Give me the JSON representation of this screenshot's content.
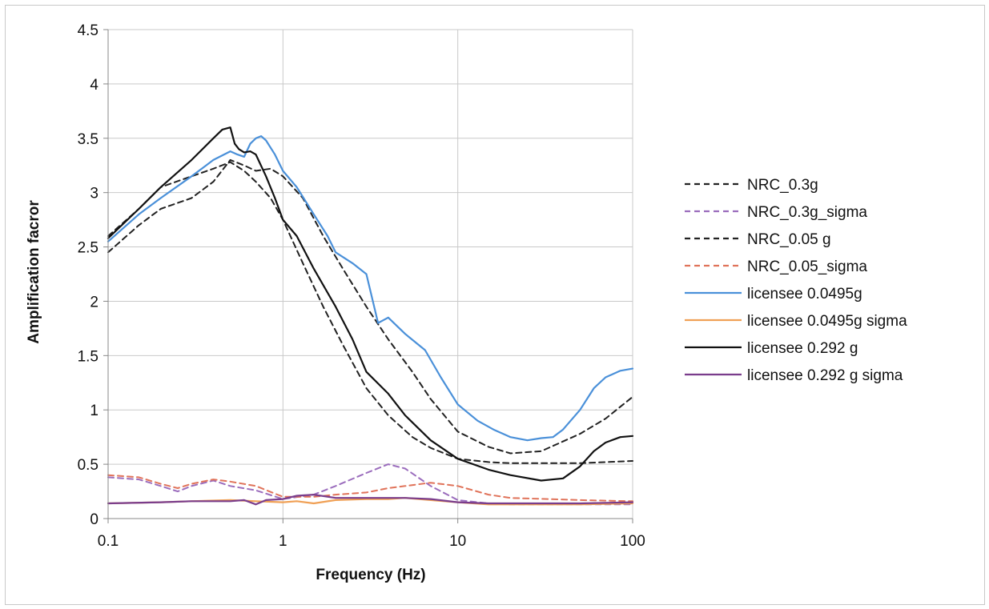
{
  "chart_data": {
    "type": "line",
    "xlabel": "Frequency (Hz)",
    "ylabel": "Amplification facror",
    "xscale": "log",
    "xlim": [
      0.1,
      100
    ],
    "ylim": [
      0,
      4.5
    ],
    "xticks": [
      "0.1",
      "1",
      "10",
      "100"
    ],
    "yticks": [
      "0",
      "0.5",
      "1",
      "1.5",
      "2",
      "2.5",
      "3",
      "3.5",
      "4",
      "4.5"
    ],
    "grid": true,
    "legend_position": "right",
    "series": [
      {
        "name": "NRC_0.3g",
        "color": "#222222",
        "dash": "dashed",
        "x": [
          0.1,
          0.15,
          0.2,
          0.3,
          0.4,
          0.5,
          0.6,
          0.7,
          0.85,
          1.0,
          1.3,
          1.7,
          2.2,
          3.0,
          4.0,
          5.5,
          7.0,
          10,
          15,
          20,
          30,
          50,
          70,
          100
        ],
        "y": [
          2.6,
          2.85,
          3.05,
          3.15,
          3.22,
          3.28,
          3.2,
          3.1,
          2.95,
          2.75,
          2.35,
          1.95,
          1.6,
          1.2,
          0.95,
          0.75,
          0.65,
          0.55,
          0.52,
          0.51,
          0.51,
          0.51,
          0.52,
          0.53
        ]
      },
      {
        "name": "NRC_0.3g_sigma",
        "color": "#9b6dbd",
        "dash": "dashed",
        "x": [
          0.1,
          0.15,
          0.2,
          0.25,
          0.3,
          0.4,
          0.5,
          0.7,
          1.0,
          1.5,
          2.0,
          3.0,
          4.0,
          5.0,
          7.0,
          10,
          15,
          20,
          50,
          100
        ],
        "y": [
          0.38,
          0.36,
          0.3,
          0.25,
          0.3,
          0.35,
          0.3,
          0.26,
          0.18,
          0.22,
          0.3,
          0.42,
          0.5,
          0.46,
          0.3,
          0.17,
          0.14,
          0.13,
          0.13,
          0.13
        ]
      },
      {
        "name": "NRC_0.05 g",
        "color": "#222222",
        "dash": "dashed",
        "x": [
          0.1,
          0.15,
          0.2,
          0.3,
          0.4,
          0.5,
          0.6,
          0.7,
          0.85,
          1.0,
          1.3,
          1.7,
          2.2,
          3.0,
          4.0,
          5.5,
          7.0,
          10,
          15,
          20,
          30,
          50,
          70,
          100
        ],
        "y": [
          2.45,
          2.7,
          2.85,
          2.95,
          3.1,
          3.3,
          3.25,
          3.2,
          3.22,
          3.15,
          2.95,
          2.6,
          2.3,
          1.95,
          1.65,
          1.35,
          1.1,
          0.8,
          0.66,
          0.6,
          0.62,
          0.78,
          0.92,
          1.12
        ]
      },
      {
        "name": "NRC_0.05_sigma",
        "color": "#e0735a",
        "dash": "dashed",
        "x": [
          0.1,
          0.15,
          0.2,
          0.25,
          0.3,
          0.4,
          0.5,
          0.7,
          1.0,
          1.5,
          2.0,
          3.0,
          4.0,
          5.0,
          7.0,
          10,
          15,
          20,
          50,
          100
        ],
        "y": [
          0.4,
          0.38,
          0.32,
          0.28,
          0.32,
          0.36,
          0.34,
          0.3,
          0.2,
          0.2,
          0.22,
          0.24,
          0.28,
          0.3,
          0.33,
          0.3,
          0.22,
          0.19,
          0.17,
          0.16
        ]
      },
      {
        "name": "licensee 0.0495g",
        "color": "#4a90d9",
        "dash": "solid",
        "x": [
          0.1,
          0.15,
          0.2,
          0.3,
          0.4,
          0.5,
          0.55,
          0.6,
          0.65,
          0.7,
          0.75,
          0.8,
          0.9,
          1.0,
          1.2,
          1.5,
          1.8,
          2.0,
          2.5,
          3.0,
          3.5,
          4.0,
          5.0,
          6.5,
          8.0,
          10,
          13,
          16,
          20,
          25,
          30,
          35,
          40,
          50,
          60,
          70,
          85,
          100
        ],
        "y": [
          2.55,
          2.8,
          2.95,
          3.15,
          3.3,
          3.38,
          3.35,
          3.33,
          3.45,
          3.5,
          3.52,
          3.48,
          3.35,
          3.2,
          3.05,
          2.8,
          2.6,
          2.45,
          2.35,
          2.25,
          1.8,
          1.85,
          1.7,
          1.55,
          1.3,
          1.05,
          0.9,
          0.82,
          0.75,
          0.72,
          0.74,
          0.75,
          0.82,
          1.0,
          1.2,
          1.3,
          1.36,
          1.38
        ]
      },
      {
        "name": "licensee 0.0495g sigma",
        "color": "#f0a055",
        "dash": "solid",
        "x": [
          0.1,
          0.2,
          0.3,
          0.5,
          0.7,
          1.0,
          1.2,
          1.5,
          2.0,
          3.0,
          4.0,
          5.0,
          7.0,
          10,
          15,
          20,
          50,
          100
        ],
        "y": [
          0.14,
          0.15,
          0.16,
          0.17,
          0.16,
          0.15,
          0.16,
          0.14,
          0.17,
          0.18,
          0.18,
          0.19,
          0.17,
          0.15,
          0.13,
          0.13,
          0.13,
          0.14
        ]
      },
      {
        "name": "licensee 0.292 g",
        "color": "#111111",
        "dash": "solid",
        "x": [
          0.1,
          0.15,
          0.2,
          0.3,
          0.4,
          0.45,
          0.5,
          0.53,
          0.56,
          0.6,
          0.65,
          0.7,
          0.8,
          0.9,
          1.0,
          1.2,
          1.5,
          2.0,
          2.5,
          3.0,
          4.0,
          5.0,
          7.0,
          10,
          15,
          20,
          30,
          40,
          50,
          60,
          70,
          85,
          100
        ],
        "y": [
          2.58,
          2.85,
          3.05,
          3.3,
          3.5,
          3.58,
          3.6,
          3.45,
          3.4,
          3.37,
          3.38,
          3.35,
          3.15,
          2.95,
          2.75,
          2.6,
          2.3,
          1.95,
          1.65,
          1.35,
          1.15,
          0.95,
          0.72,
          0.55,
          0.45,
          0.4,
          0.35,
          0.37,
          0.48,
          0.62,
          0.7,
          0.75,
          0.76
        ]
      },
      {
        "name": "licensee 0.292 g sigma",
        "color": "#7a3d8c",
        "dash": "solid",
        "x": [
          0.1,
          0.2,
          0.3,
          0.5,
          0.6,
          0.7,
          0.8,
          1.0,
          1.2,
          1.5,
          2.0,
          3.0,
          4.0,
          5.0,
          7.0,
          10,
          15,
          20,
          50,
          100
        ],
        "y": [
          0.14,
          0.15,
          0.16,
          0.16,
          0.17,
          0.13,
          0.17,
          0.18,
          0.21,
          0.22,
          0.19,
          0.19,
          0.19,
          0.19,
          0.18,
          0.15,
          0.14,
          0.14,
          0.14,
          0.15
        ]
      }
    ]
  }
}
